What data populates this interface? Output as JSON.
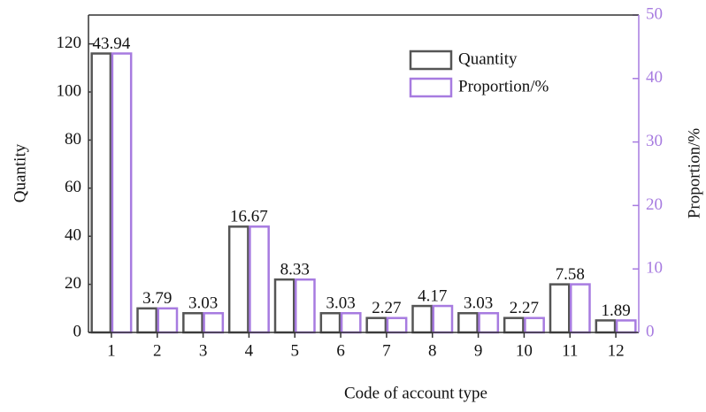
{
  "chart_data": {
    "type": "bar",
    "x_label": "Code of account type",
    "y_label": "Quantity",
    "y2_label": "Proportion/%",
    "categories": [
      "1",
      "2",
      "3",
      "4",
      "5",
      "6",
      "7",
      "8",
      "9",
      "10",
      "11",
      "12"
    ],
    "series": [
      {
        "name": "Quantity",
        "color": "#555555",
        "values": [
          116,
          10,
          8,
          44,
          22,
          8,
          6,
          11,
          8,
          6,
          20,
          5
        ]
      },
      {
        "name": "Proportion/%",
        "color": "#a77be0",
        "axis": "y2",
        "values": [
          43.94,
          3.79,
          3.03,
          16.67,
          8.33,
          3.03,
          2.27,
          4.17,
          3.03,
          2.27,
          7.58,
          1.89
        ]
      }
    ],
    "ylim": [
      0,
      132
    ],
    "yticks": [
      0,
      20,
      40,
      60,
      80,
      100,
      120
    ],
    "y2lim": [
      0,
      50
    ],
    "y2ticks": [
      0,
      10,
      20,
      30,
      40,
      50
    ],
    "legend": "upper right"
  }
}
